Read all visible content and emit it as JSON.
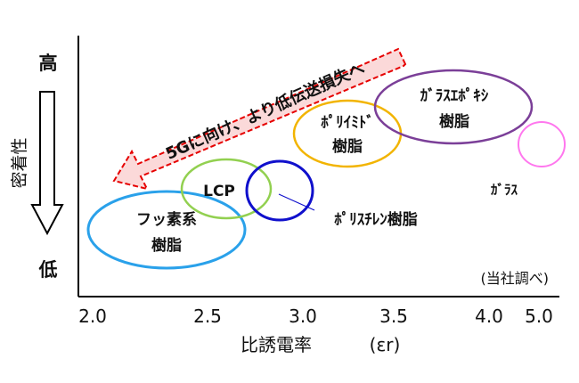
{
  "chart_data": {
    "type": "bubble",
    "xlabel": "比誘電率",
    "xlabel_symbol": "(εr)",
    "x_ticks": [
      "2.0",
      "2.5",
      "3.0",
      "3.5",
      "4.0",
      "5.0"
    ],
    "y_axis_title": "密着性",
    "y_high": "高",
    "y_low": "低",
    "note": "(当社調べ)",
    "arrow_text": "5Gに向け、より低伝送損失へ",
    "materials": [
      {
        "label": [
          "フッ素系",
          "樹脂"
        ],
        "x": 2.35,
        "y": 0.22,
        "color": "#2aa1ea"
      },
      {
        "label": [
          "LCP"
        ],
        "x": 2.72,
        "y": 0.4,
        "color": "#92d050"
      },
      {
        "label": [
          "ﾎﾟﾘｲﾐﾄﾞ",
          "樹脂"
        ],
        "x": 3.23,
        "y": 0.68,
        "color": "#f2b400"
      },
      {
        "label": [
          "ｶﾞﾗｽｴﾎﾟｷｼ",
          "樹脂"
        ],
        "x": 3.78,
        "y": 0.83,
        "color": "#7b3f98"
      },
      {
        "label": [
          "ｶﾞﾗｽ"
        ],
        "x": 4.93,
        "y": 0.64,
        "color": "#ff77ee"
      },
      {
        "label": [
          "ﾎﾟﾘｽﾁﾚﾝ樹脂"
        ],
        "x": 2.88,
        "y": 0.43,
        "color": "#1010cc"
      }
    ]
  }
}
